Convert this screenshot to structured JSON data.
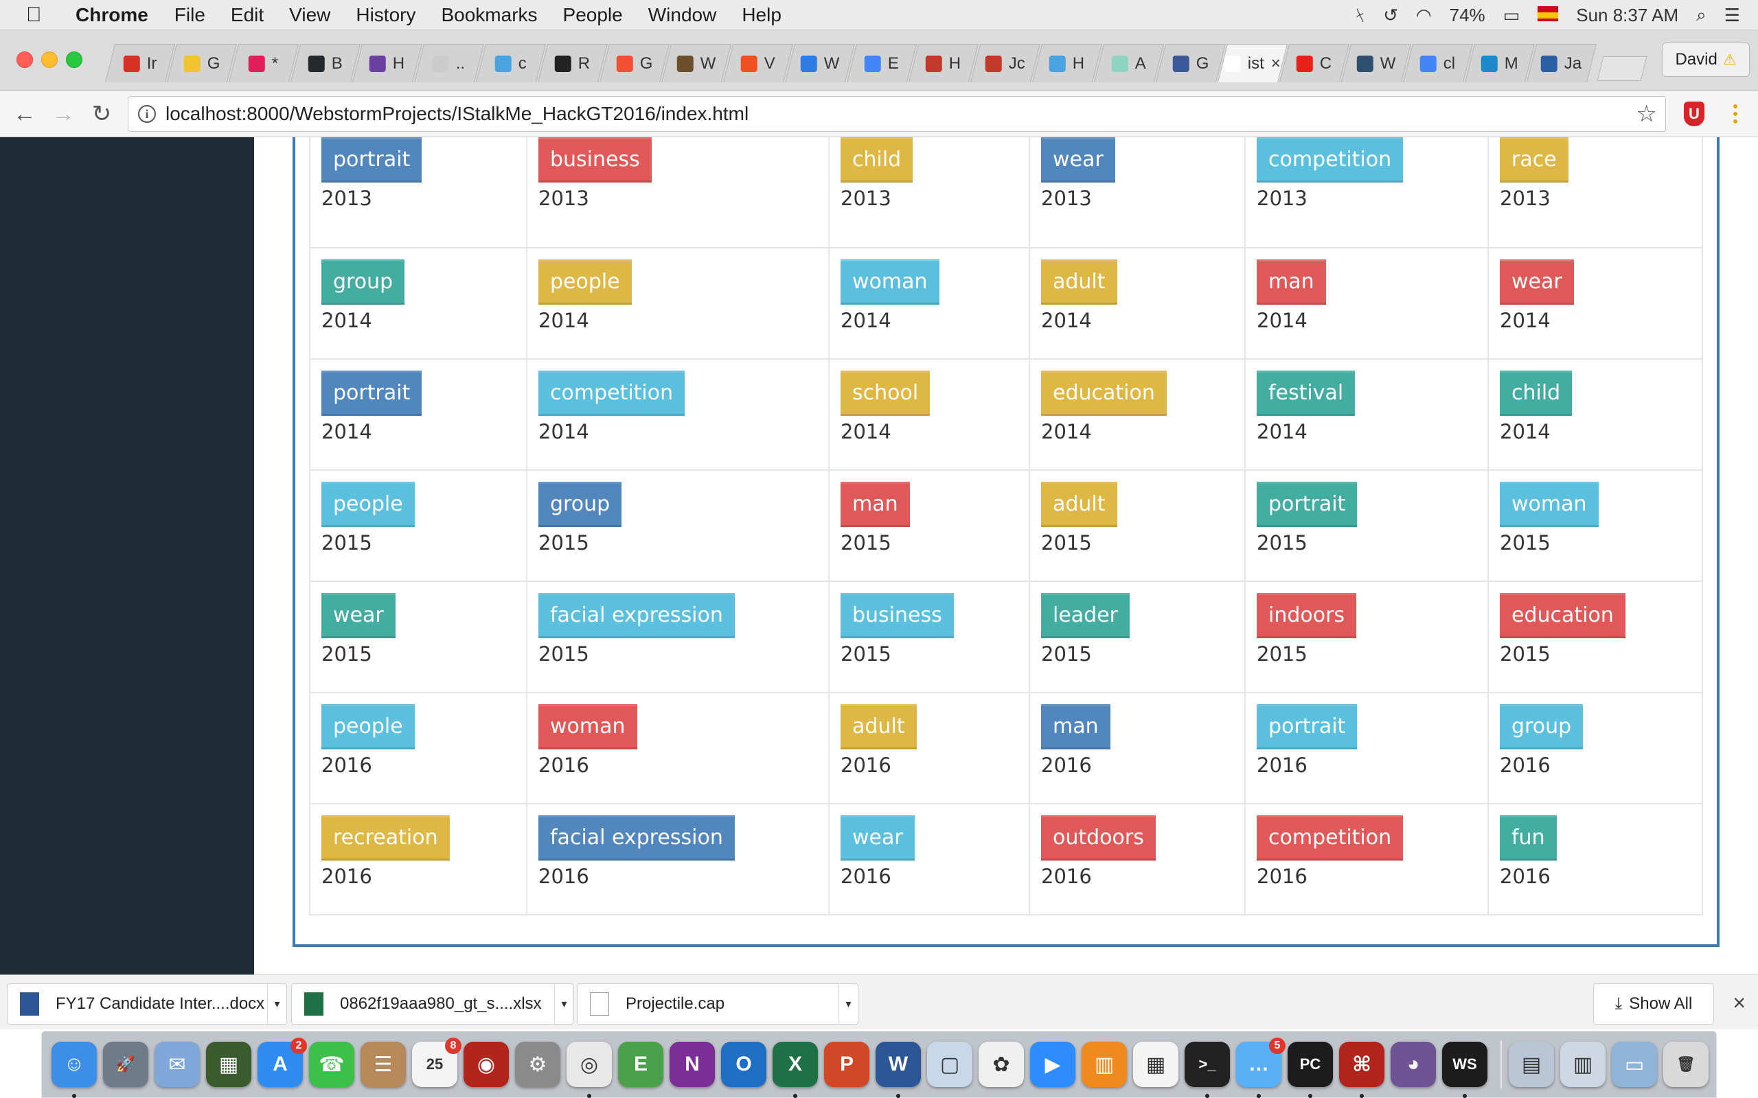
{
  "menubar": {
    "app_name": "Chrome",
    "items": [
      "File",
      "Edit",
      "View",
      "History",
      "Bookmarks",
      "People",
      "Window",
      "Help"
    ],
    "battery": "74%",
    "input_source": "ISO",
    "clock": "Sun 8:37 AM"
  },
  "tabs": [
    {
      "label": "Ir",
      "color": "#d93025"
    },
    {
      "label": "G",
      "color": "#f1c232"
    },
    {
      "label": "*",
      "color": "#e01e5a"
    },
    {
      "label": "B",
      "color": "#24292e"
    },
    {
      "label": "H",
      "color": "#6a3fa0"
    },
    {
      "label": "..",
      "color": "#cccccc"
    },
    {
      "label": "c",
      "color": "#4aa3df"
    },
    {
      "label": "R",
      "color": "#222222"
    },
    {
      "label": "G",
      "color": "#f05032"
    },
    {
      "label": "W",
      "color": "#6b4f2a"
    },
    {
      "label": "V",
      "color": "#f25022"
    },
    {
      "label": "W",
      "color": "#2f7de1"
    },
    {
      "label": "E",
      "color": "#4285f4"
    },
    {
      "label": "H",
      "color": "#c0392b"
    },
    {
      "label": "Jc",
      "color": "#c0392b"
    },
    {
      "label": "H",
      "color": "#4aa3df"
    },
    {
      "label": "A",
      "color": "#8fd3c3"
    },
    {
      "label": "G",
      "color": "#3b5998"
    },
    {
      "label": "ist",
      "color": "#ffffff",
      "active": true
    },
    {
      "label": "C",
      "color": "#e62117"
    },
    {
      "label": "W",
      "color": "#2f4f6f"
    },
    {
      "label": "cl",
      "color": "#4285f4"
    },
    {
      "label": "M",
      "color": "#1e88c8"
    },
    {
      "label": "Ja",
      "color": "#2a5fa5"
    }
  ],
  "active_tab_close": "×",
  "profile": {
    "name": "David",
    "warning": "⚠"
  },
  "address_bar": {
    "url": "localhost:8000/WebstormProjects/IStalkMe_HackGT2016/index.html"
  },
  "colors": {
    "blue": "#5287bd",
    "red": "#e05858",
    "yellow": "#dfb744",
    "cyan": "#5bc0de",
    "teal": "#44ada2",
    "sidebar": "#1e2a36",
    "panel_border": "#3f7ab5"
  },
  "grid": {
    "rows": [
      [
        {
          "tag": "portrait",
          "color": "blue",
          "year": "2013"
        },
        {
          "tag": "business",
          "color": "red",
          "year": "2013"
        },
        {
          "tag": "child",
          "color": "yellow",
          "year": "2013"
        },
        {
          "tag": "wear",
          "color": "blue",
          "year": "2013"
        },
        {
          "tag": "competition",
          "color": "cyan",
          "year": "2013"
        },
        {
          "tag": "race",
          "color": "yellow",
          "year": "2013"
        }
      ],
      [
        {
          "tag": "group",
          "color": "teal",
          "year": "2014"
        },
        {
          "tag": "people",
          "color": "yellow",
          "year": "2014"
        },
        {
          "tag": "woman",
          "color": "cyan",
          "year": "2014"
        },
        {
          "tag": "adult",
          "color": "yellow",
          "year": "2014"
        },
        {
          "tag": "man",
          "color": "red",
          "year": "2014"
        },
        {
          "tag": "wear",
          "color": "red",
          "year": "2014"
        }
      ],
      [
        {
          "tag": "portrait",
          "color": "blue",
          "year": "2014"
        },
        {
          "tag": "competition",
          "color": "cyan",
          "year": "2014"
        },
        {
          "tag": "school",
          "color": "yellow",
          "year": "2014"
        },
        {
          "tag": "education",
          "color": "yellow",
          "year": "2014"
        },
        {
          "tag": "festival",
          "color": "teal",
          "year": "2014"
        },
        {
          "tag": "child",
          "color": "teal",
          "year": "2014"
        }
      ],
      [
        {
          "tag": "people",
          "color": "cyan",
          "year": "2015"
        },
        {
          "tag": "group",
          "color": "blue",
          "year": "2015"
        },
        {
          "tag": "man",
          "color": "red",
          "year": "2015"
        },
        {
          "tag": "adult",
          "color": "yellow",
          "year": "2015"
        },
        {
          "tag": "portrait",
          "color": "teal",
          "year": "2015"
        },
        {
          "tag": "woman",
          "color": "cyan",
          "year": "2015"
        }
      ],
      [
        {
          "tag": "wear",
          "color": "teal",
          "year": "2015"
        },
        {
          "tag": "facial expression",
          "color": "cyan",
          "year": "2015"
        },
        {
          "tag": "business",
          "color": "cyan",
          "year": "2015"
        },
        {
          "tag": "leader",
          "color": "teal",
          "year": "2015"
        },
        {
          "tag": "indoors",
          "color": "red",
          "year": "2015"
        },
        {
          "tag": "education",
          "color": "red",
          "year": "2015"
        }
      ],
      [
        {
          "tag": "people",
          "color": "cyan",
          "year": "2016"
        },
        {
          "tag": "woman",
          "color": "red",
          "year": "2016"
        },
        {
          "tag": "adult",
          "color": "yellow",
          "year": "2016"
        },
        {
          "tag": "man",
          "color": "blue",
          "year": "2016"
        },
        {
          "tag": "portrait",
          "color": "cyan",
          "year": "2016"
        },
        {
          "tag": "group",
          "color": "cyan",
          "year": "2016"
        }
      ],
      [
        {
          "tag": "recreation",
          "color": "yellow",
          "year": "2016"
        },
        {
          "tag": "facial expression",
          "color": "blue",
          "year": "2016"
        },
        {
          "tag": "wear",
          "color": "cyan",
          "year": "2016"
        },
        {
          "tag": "outdoors",
          "color": "red",
          "year": "2016"
        },
        {
          "tag": "competition",
          "color": "red",
          "year": "2016"
        },
        {
          "tag": "fun",
          "color": "teal",
          "year": "2016"
        }
      ]
    ]
  },
  "downloads": {
    "items": [
      {
        "name": "FY17 Candidate Inter....docx",
        "type": "word"
      },
      {
        "name": "0862f19aaa980_gt_s....xlsx",
        "type": "excel"
      },
      {
        "name": "Projectile.cap",
        "type": "generic"
      }
    ],
    "show_all_label": "Show All",
    "close_label": "×"
  },
  "dock": {
    "apps": [
      {
        "name": "finder-app-icon",
        "color": "#3d8ee8",
        "glyph": "☺",
        "running": true
      },
      {
        "name": "launchpad-app-icon",
        "color": "#6f7b88",
        "glyph": "🚀"
      },
      {
        "name": "mail-app-icon",
        "color": "#7fa8d8",
        "glyph": "✉"
      },
      {
        "name": "activity-app-icon",
        "color": "#3a5b2e",
        "glyph": "▦"
      },
      {
        "name": "app-store-app-icon",
        "color": "#2e8cf0",
        "glyph": "A",
        "badge": "2"
      },
      {
        "name": "facetime-app-icon",
        "color": "#3cc04a",
        "glyph": "☎"
      },
      {
        "name": "contacts-app-icon",
        "color": "#b7895a",
        "glyph": "☰"
      },
      {
        "name": "calendar-app-icon",
        "color": "#f4f4f4",
        "glyph": "25",
        "badge": "8"
      },
      {
        "name": "photo-booth-app-icon",
        "color": "#b3241c",
        "glyph": "◉"
      },
      {
        "name": "system-prefs-app-icon",
        "color": "#8a8a8a",
        "glyph": "⚙"
      },
      {
        "name": "chrome-app-icon",
        "color": "#e8e8e8",
        "glyph": "◎",
        "running": true
      },
      {
        "name": "evernote-app-icon",
        "color": "#4aa14a",
        "glyph": "E"
      },
      {
        "name": "onenote-app-icon",
        "color": "#7b2e98",
        "glyph": "N"
      },
      {
        "name": "outlook-app-icon",
        "color": "#1e6fc4",
        "glyph": "O"
      },
      {
        "name": "excel-app-icon",
        "color": "#1e7145",
        "glyph": "X",
        "running": true
      },
      {
        "name": "powerpoint-app-icon",
        "color": "#d24726",
        "glyph": "P"
      },
      {
        "name": "word-app-icon",
        "color": "#2b5797",
        "glyph": "W",
        "running": true
      },
      {
        "name": "preview-app-icon",
        "color": "#c7d8ea",
        "glyph": "▢"
      },
      {
        "name": "photos-app-icon",
        "color": "#f0f0f0",
        "glyph": "✿"
      },
      {
        "name": "zoom-app-icon",
        "color": "#2d8cff",
        "glyph": "▶"
      },
      {
        "name": "ibooks-app-icon",
        "color": "#f08a1c",
        "glyph": "▥"
      },
      {
        "name": "grid-app-icon",
        "color": "#f4f4f4",
        "glyph": "▦"
      },
      {
        "name": "terminal-app-icon",
        "color": "#222222",
        "glyph": ">_",
        "running": true
      },
      {
        "name": "messages-app-icon",
        "color": "#5ab0f5",
        "glyph": "…",
        "badge": "5",
        "running": true
      },
      {
        "name": "pycharm-app-icon",
        "color": "#1c1c1c",
        "glyph": "PC",
        "running": true
      },
      {
        "name": "acrobat-app-icon",
        "color": "#b3241c",
        "glyph": "⌘",
        "running": true
      },
      {
        "name": "github-app-icon",
        "color": "#6e5494",
        "glyph": "◕"
      },
      {
        "name": "webstorm-app-icon",
        "color": "#1c1c1c",
        "glyph": "WS",
        "running": true
      },
      {
        "name": "downloads-stack-icon",
        "color": "#b9c6d6",
        "glyph": "▤",
        "separator_before": true
      },
      {
        "name": "documents-stack-icon",
        "color": "#cfd8e2",
        "glyph": "▥"
      },
      {
        "name": "folder-stack-icon",
        "color": "#8fb3d9",
        "glyph": "▭"
      },
      {
        "name": "trash-icon",
        "color": "#d9d9d9",
        "glyph": "🗑"
      }
    ]
  }
}
